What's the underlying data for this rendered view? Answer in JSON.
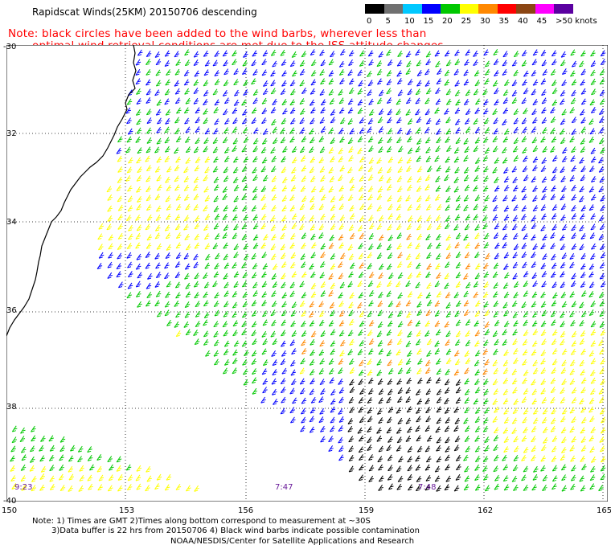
{
  "title": "Rapidscat Winds(25KM) 20150706 descending",
  "note_line1": "Note: black circles have been added to the wind barbs, wherever less than",
  "note_line2": "optimal wind retrieval conditions are met due to the ISS attitude changes.",
  "legend": {
    "labels": [
      "0",
      "5",
      "10",
      "15",
      "20",
      "25",
      "30",
      "35",
      "40",
      "45",
      ">50 knots"
    ],
    "colors": [
      "#000000",
      "#707070",
      "#00c8ff",
      "#0000ff",
      "#00c800",
      "#ffff00",
      "#ff8800",
      "#ff0000",
      "#8b4513",
      "#ff00ff",
      "#5a00a0"
    ]
  },
  "latitude_labels": [
    "-30",
    "32",
    "34",
    "36",
    "38",
    "-40"
  ],
  "longitude_labels": [
    "150",
    "153",
    "156",
    "159",
    "162",
    "165"
  ],
  "pass_times": [
    "9:23",
    "7:47",
    "7:48"
  ],
  "footer": {
    "line1": "Note: 1) Times are GMT 2)Times along bottom correspond to measurement at ~30S",
    "line2": "3)Data buffer is 22 hrs from 20150706 4) Black wind barbs indicate possible contamination",
    "line3": "NOAA/NESDIS/Center for Satellite Applications and Research"
  }
}
